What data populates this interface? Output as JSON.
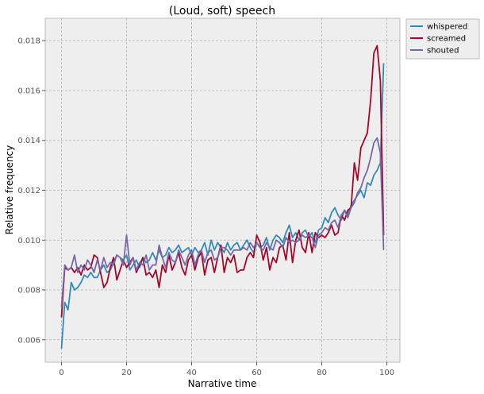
{
  "chart_data": {
    "type": "line",
    "title": "(Loud, soft) speech",
    "xlabel": "Narrative time",
    "ylabel": "Relative frequency",
    "xlim": [
      -5,
      104
    ],
    "ylim": [
      0.0051,
      0.0189
    ],
    "xticks": [
      0,
      20,
      40,
      60,
      80,
      100
    ],
    "xtick_labels": [
      "0",
      "20",
      "40",
      "60",
      "80",
      "100"
    ],
    "yticks": [
      0.006,
      0.008,
      0.01,
      0.012,
      0.014,
      0.016,
      0.018
    ],
    "ytick_labels": [
      "0.006",
      "0.008",
      "0.010",
      "0.012",
      "0.014",
      "0.016",
      "0.018"
    ],
    "grid": true,
    "legend_position": "outside-top-right",
    "x": [
      0,
      1,
      2,
      3,
      4,
      5,
      6,
      7,
      8,
      9,
      10,
      11,
      12,
      13,
      14,
      15,
      16,
      17,
      18,
      19,
      20,
      21,
      22,
      23,
      24,
      25,
      26,
      27,
      28,
      29,
      30,
      31,
      32,
      33,
      34,
      35,
      36,
      37,
      38,
      39,
      40,
      41,
      42,
      43,
      44,
      45,
      46,
      47,
      48,
      49,
      50,
      51,
      52,
      53,
      54,
      55,
      56,
      57,
      58,
      59,
      60,
      61,
      62,
      63,
      64,
      65,
      66,
      67,
      68,
      69,
      70,
      71,
      72,
      73,
      74,
      75,
      76,
      77,
      78,
      79,
      80,
      81,
      82,
      83,
      84,
      85,
      86,
      87,
      88,
      89,
      90,
      91,
      92,
      93,
      94,
      95,
      96,
      97,
      98,
      99
    ],
    "series": [
      {
        "name": "whispered",
        "color": "#348abd",
        "values": [
          0.00565,
          0.0075,
          0.0072,
          0.0083,
          0.008,
          0.0081,
          0.0083,
          0.0086,
          0.0085,
          0.0087,
          0.0085,
          0.0085,
          0.0088,
          0.009,
          0.0087,
          0.0088,
          0.0091,
          0.0094,
          0.0093,
          0.0092,
          0.0094,
          0.0088,
          0.009,
          0.0092,
          0.0089,
          0.0093,
          0.0091,
          0.0092,
          0.0095,
          0.0092,
          0.0096,
          0.0093,
          0.0094,
          0.0097,
          0.0095,
          0.0096,
          0.0098,
          0.0095,
          0.0096,
          0.0097,
          0.0094,
          0.0097,
          0.0095,
          0.0096,
          0.0099,
          0.0094,
          0.01,
          0.0096,
          0.0099,
          0.0097,
          0.0095,
          0.0099,
          0.0096,
          0.0098,
          0.0099,
          0.0096,
          0.0098,
          0.01,
          0.0097,
          0.0095,
          0.0099,
          0.0097,
          0.0098,
          0.0101,
          0.0096,
          0.01,
          0.0102,
          0.0101,
          0.0099,
          0.0103,
          0.0106,
          0.0101,
          0.0103,
          0.01,
          0.0103,
          0.0104,
          0.0101,
          0.0103,
          0.0099,
          0.0104,
          0.0105,
          0.0109,
          0.0107,
          0.0111,
          0.0113,
          0.011,
          0.0108,
          0.0112,
          0.011,
          0.0114,
          0.0116,
          0.0118,
          0.012,
          0.0117,
          0.0123,
          0.0122,
          0.0126,
          0.0128,
          0.0131,
          0.0171
        ]
      },
      {
        "name": "screamed",
        "color": "#a60628",
        "values": [
          0.0069,
          0.0089,
          0.0088,
          0.0089,
          0.0087,
          0.0089,
          0.0086,
          0.009,
          0.0088,
          0.0089,
          0.0094,
          0.0093,
          0.0087,
          0.0081,
          0.0083,
          0.0089,
          0.0093,
          0.0084,
          0.0088,
          0.0092,
          0.0089,
          0.0091,
          0.0093,
          0.0087,
          0.009,
          0.0093,
          0.0086,
          0.0087,
          0.0085,
          0.0088,
          0.0081,
          0.009,
          0.0087,
          0.0094,
          0.0088,
          0.0091,
          0.0095,
          0.0089,
          0.0086,
          0.0092,
          0.0094,
          0.0088,
          0.0093,
          0.0095,
          0.0086,
          0.0092,
          0.0093,
          0.0087,
          0.0093,
          0.0098,
          0.0087,
          0.0093,
          0.0091,
          0.0094,
          0.0087,
          0.0088,
          0.0088,
          0.0093,
          0.0095,
          0.0093,
          0.0102,
          0.0099,
          0.0092,
          0.0097,
          0.0088,
          0.0093,
          0.0091,
          0.0097,
          0.0098,
          0.0092,
          0.0103,
          0.0091,
          0.01,
          0.0104,
          0.0097,
          0.0095,
          0.0103,
          0.0095,
          0.0103,
          0.0101,
          0.0102,
          0.0101,
          0.0103,
          0.0106,
          0.0102,
          0.0103,
          0.011,
          0.0108,
          0.0112,
          0.0113,
          0.0131,
          0.0124,
          0.0137,
          0.014,
          0.0143,
          0.0156,
          0.0175,
          0.0178,
          0.0164,
          0.0102
        ]
      },
      {
        "name": "shouted",
        "color": "#7a68a6",
        "values": [
          0.0073,
          0.009,
          0.0088,
          0.0089,
          0.0094,
          0.0087,
          0.009,
          0.0088,
          0.0092,
          0.009,
          0.0087,
          0.0092,
          0.0088,
          0.0093,
          0.0089,
          0.0091,
          0.009,
          0.0094,
          0.0093,
          0.009,
          0.0102,
          0.009,
          0.0093,
          0.0088,
          0.0091,
          0.009,
          0.0094,
          0.0088,
          0.009,
          0.009,
          0.0098,
          0.0093,
          0.0089,
          0.0095,
          0.0092,
          0.0091,
          0.0096,
          0.0093,
          0.009,
          0.0094,
          0.0096,
          0.009,
          0.0094,
          0.0096,
          0.0091,
          0.0095,
          0.0096,
          0.0092,
          0.0093,
          0.0097,
          0.0097,
          0.0096,
          0.0094,
          0.0096,
          0.0096,
          0.0096,
          0.0097,
          0.0096,
          0.0099,
          0.0097,
          0.0099,
          0.0097,
          0.0096,
          0.0099,
          0.0097,
          0.0096,
          0.01,
          0.0099,
          0.0097,
          0.0101,
          0.0099,
          0.01,
          0.0099,
          0.01,
          0.0102,
          0.0101,
          0.0102,
          0.0101,
          0.0097,
          0.0102,
          0.0103,
          0.0105,
          0.0104,
          0.0107,
          0.0108,
          0.0105,
          0.011,
          0.0112,
          0.0109,
          0.0113,
          0.0115,
          0.0119,
          0.0121,
          0.0125,
          0.0128,
          0.0133,
          0.0139,
          0.0141,
          0.0135,
          0.0096
        ]
      }
    ]
  }
}
